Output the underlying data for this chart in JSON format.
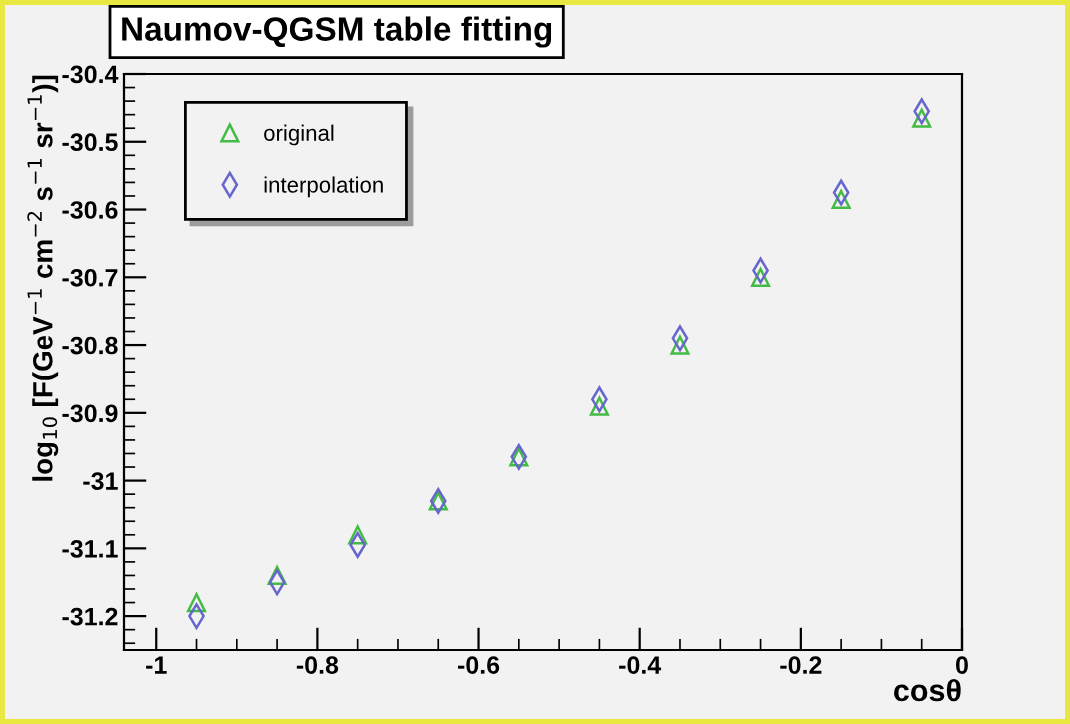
{
  "chart_data": {
    "type": "scatter",
    "title": "Naumov-QGSM table fitting",
    "xlabel": "cosθ",
    "ylabel": "log$_{10}$ [F(GeV$^{−1}$ cm$^{−2}$ s$^{−1}$ sr$^{−1}$)]",
    "x": [
      -0.95,
      -0.85,
      -0.75,
      -0.65,
      -0.55,
      -0.45,
      -0.35,
      -0.25,
      -0.15,
      -0.05
    ],
    "series": [
      {
        "name": "original",
        "color": "#44bb44",
        "marker": "triangle",
        "values": [
          -31.18,
          -31.14,
          -31.08,
          -31.03,
          -30.965,
          -30.89,
          -30.8,
          -30.7,
          -30.585,
          -30.465
        ]
      },
      {
        "name": "interpolation",
        "color": "#6666cc",
        "marker": "diamond",
        "values": [
          -31.2,
          -31.15,
          -31.095,
          -31.03,
          -30.965,
          -30.88,
          -30.79,
          -30.69,
          -30.575,
          -30.455
        ]
      }
    ],
    "xlim": [
      -1.04,
      0
    ],
    "ylim": [
      -31.25,
      -30.4
    ],
    "xticks": [
      -1,
      -0.8,
      -0.6,
      -0.4,
      -0.2,
      0
    ],
    "yticks": [
      -31.2,
      -31.1,
      -31,
      -30.9,
      -30.8,
      -30.7,
      -30.6,
      -30.5,
      -30.4
    ],
    "grid": false,
    "legend": "top left"
  }
}
